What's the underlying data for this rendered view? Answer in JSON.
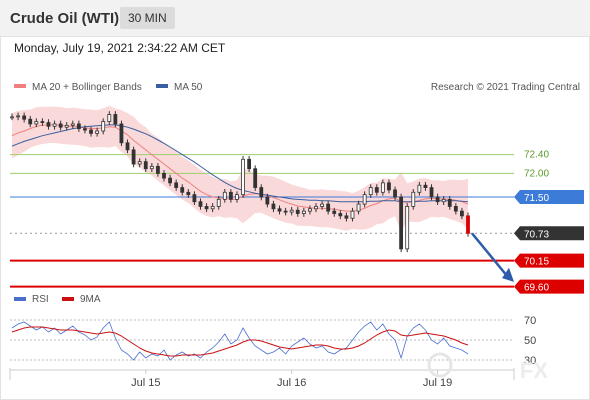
{
  "header": {
    "title": "Crude Oil (WTI)",
    "timeframe": "30 MIN"
  },
  "timestamp": "Monday, July 19, 2021 2:34:22 AM CET",
  "colors": {
    "bollinger_band": "#f7c9c9",
    "ma20": "#f08080",
    "ma50": "#3a5fa0",
    "candle": "#333333",
    "support": "#dd0000",
    "resistance": "#9bcf6a",
    "pivot": "#3d7bd9",
    "last_price_box": "#333333",
    "rsi": "#4a6fd0",
    "rsi_ma": "#cc1111",
    "arrow": "#2e5caa"
  },
  "legend": {
    "ma20_label": "MA 20 + Bollinger Bands",
    "ma50_label": "MA 50",
    "source": "Research © 2021 Trading Central",
    "rsi_label": "RSI",
    "rsi_ma_label": "9MA"
  },
  "watermark": "FX",
  "chart_data": [
    {
      "type": "line",
      "name": "price",
      "x_tick_labels": [
        "Jul 15",
        "Jul 16",
        "Jul 19"
      ],
      "ylim": [
        69.4,
        73.6
      ],
      "levels": [
        {
          "value": 72.4,
          "label": "72.40",
          "role": "resistance"
        },
        {
          "value": 72.0,
          "label": "72.00",
          "role": "resistance"
        },
        {
          "value": 71.5,
          "label": "71.50",
          "role": "pivot"
        },
        {
          "value": 70.73,
          "label": "70.73",
          "role": "last"
        },
        {
          "value": 70.15,
          "label": "70.15",
          "role": "support"
        },
        {
          "value": 69.6,
          "label": "69.60",
          "role": "support"
        }
      ],
      "series": [
        {
          "name": "Price",
          "values": [
            73.2,
            73.22,
            73.15,
            73.05,
            73.1,
            73.08,
            73.0,
            73.05,
            72.98,
            73.02,
            73.05,
            72.95,
            72.92,
            72.85,
            72.9,
            73.1,
            73.25,
            73.05,
            72.65,
            72.5,
            72.2,
            72.25,
            72.1,
            72.15,
            72.0,
            71.9,
            71.8,
            71.7,
            71.6,
            71.55,
            71.4,
            71.3,
            71.25,
            71.3,
            71.45,
            71.6,
            71.45,
            71.55,
            72.3,
            72.1,
            71.7,
            71.5,
            71.35,
            71.25,
            71.2,
            71.18,
            71.22,
            71.15,
            71.2,
            71.25,
            71.3,
            71.35,
            71.2,
            71.15,
            71.1,
            71.05,
            71.2,
            71.35,
            71.55,
            71.7,
            71.6,
            71.8,
            71.65,
            71.5,
            70.4,
            71.3,
            71.6,
            71.75,
            71.7,
            71.5,
            71.4,
            71.45,
            71.3,
            71.2,
            71.1,
            70.73
          ]
        },
        {
          "name": "MA 20",
          "values": [
            72.8,
            72.86,
            72.9,
            72.95,
            73.0,
            73.02,
            73.03,
            73.03,
            73.02,
            73.0,
            73.0,
            72.99,
            72.97,
            72.95,
            72.95,
            72.97,
            72.99,
            72.98,
            72.9,
            72.82,
            72.7,
            72.6,
            72.5,
            72.4,
            72.3,
            72.2,
            72.1,
            72.0,
            71.9,
            71.82,
            71.72,
            71.62,
            71.55,
            71.5,
            71.48,
            71.47,
            71.45,
            71.45,
            71.52,
            71.56,
            71.57,
            71.56,
            71.53,
            71.49,
            71.44,
            71.39,
            71.35,
            71.31,
            71.29,
            71.27,
            71.26,
            71.26,
            71.25,
            71.24,
            71.22,
            71.2,
            71.2,
            71.22,
            71.26,
            71.32,
            71.36,
            71.42,
            71.46,
            71.48,
            71.4,
            71.39,
            71.4,
            71.43,
            71.46,
            71.47,
            71.46,
            71.46,
            71.45,
            71.43,
            71.4,
            71.35
          ]
        },
        {
          "name": "MA 50",
          "values": [
            72.58,
            72.63,
            72.68,
            72.72,
            72.76,
            72.8,
            72.83,
            72.86,
            72.89,
            72.92,
            72.95,
            72.97,
            72.99,
            73.0,
            73.01,
            73.02,
            73.03,
            73.03,
            73.01,
            72.98,
            72.94,
            72.89,
            72.84,
            72.78,
            72.71,
            72.64,
            72.56,
            72.48,
            72.4,
            72.32,
            72.24,
            72.15,
            72.06,
            71.97,
            71.89,
            71.81,
            71.74,
            71.68,
            71.64,
            71.61,
            71.58,
            71.56,
            71.54,
            71.52,
            71.5,
            71.48,
            71.46,
            71.45,
            71.44,
            71.43,
            71.43,
            71.42,
            71.42,
            71.41,
            71.4,
            71.4,
            71.4,
            71.4,
            71.4,
            71.41,
            71.41,
            71.42,
            71.42,
            71.42,
            71.4,
            71.4,
            71.4,
            71.41,
            71.41,
            71.42,
            71.42,
            71.42,
            71.42,
            71.42,
            71.41,
            71.4
          ]
        }
      ]
    },
    {
      "type": "line",
      "name": "rsi",
      "ylim": [
        22,
        78
      ],
      "y_ticks": [
        70,
        50,
        30
      ],
      "series": [
        {
          "name": "RSI",
          "values": [
            62,
            66,
            68,
            64,
            60,
            63,
            58,
            62,
            56,
            60,
            64,
            58,
            55,
            50,
            53,
            62,
            68,
            52,
            40,
            36,
            30,
            38,
            32,
            36,
            34,
            40,
            30,
            35,
            38,
            34,
            36,
            32,
            38,
            42,
            48,
            56,
            46,
            50,
            62,
            52,
            44,
            40,
            36,
            38,
            42,
            36,
            44,
            48,
            52,
            46,
            42,
            44,
            38,
            36,
            40,
            42,
            50,
            58,
            64,
            68,
            60,
            66,
            56,
            50,
            32,
            54,
            62,
            66,
            60,
            50,
            46,
            52,
            44,
            42,
            40,
            36
          ]
        },
        {
          "name": "9MA",
          "values": [
            58,
            60,
            62,
            63,
            63,
            63,
            62,
            61,
            60,
            60,
            60,
            59,
            58,
            57,
            56,
            57,
            58,
            57,
            54,
            50,
            46,
            42,
            39,
            37,
            36,
            35,
            34,
            34,
            35,
            35,
            35,
            35,
            36,
            37,
            39,
            41,
            43,
            45,
            48,
            50,
            50,
            49,
            47,
            45,
            43,
            42,
            41,
            42,
            43,
            44,
            45,
            45,
            44,
            42,
            41,
            41,
            42,
            44,
            47,
            51,
            55,
            58,
            60,
            59,
            55,
            54,
            55,
            56,
            57,
            56,
            55,
            54,
            52,
            50,
            47,
            45
          ]
        }
      ]
    }
  ]
}
